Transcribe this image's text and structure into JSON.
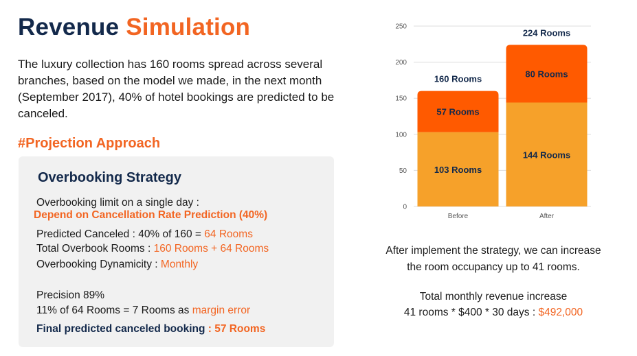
{
  "title": {
    "part1": "Revenue ",
    "part2": "Simulation"
  },
  "intro": "The luxury collection has 160 rooms spread across several branches, based on the model we made, in the next month (September 2017), 40% of hotel bookings are predicted to be canceled.",
  "section_heading": "#Projection Approach",
  "strategy": {
    "title": "Overbooking Strategy",
    "limit_label": "Overbooking limit on a single day :",
    "limit_value": "Depend on Cancellation Rate Prediction (40%)",
    "predicted_label": "Predicted Canceled : 40% of 160 = ",
    "predicted_value": "64 Rooms",
    "total_label": "Total Overbook Rooms : ",
    "total_value": "160 Rooms + 64 Rooms",
    "dynamicity_label": "Overbooking Dynamicity : ",
    "dynamicity_value": "Monthly",
    "precision": "Precision 89%",
    "margin_label": "11% of 64 Rooms = 7 Rooms as ",
    "margin_value": "margin error",
    "final_label": "Final predicted canceled booking ",
    "final_value": ": 57 Rooms"
  },
  "chart_data": {
    "type": "bar",
    "stacked": true,
    "categories": [
      "Before",
      "After"
    ],
    "series": [
      {
        "values": [
          103,
          144
        ],
        "labels": [
          "103 Rooms",
          "144 Rooms"
        ],
        "color": "#f6a12a"
      },
      {
        "values": [
          57,
          80
        ],
        "labels": [
          "57 Rooms",
          "80 Rooms"
        ],
        "color": "#ff5a00"
      }
    ],
    "totals": [
      160,
      224
    ],
    "total_labels": [
      "160 Rooms",
      "224 Rooms"
    ],
    "ylim": [
      0,
      250
    ],
    "yticks": [
      0,
      50,
      100,
      150,
      200,
      250
    ],
    "grid": true,
    "label_color": "#13294b"
  },
  "summary": {
    "line1": "After implement the strategy, we can increase",
    "line2": "the room occupancy up to 41 rooms.",
    "line3": "Total monthly revenue increase",
    "line4_prefix": "41 rooms * $400 * 30 days : ",
    "line4_value": "$492,000"
  }
}
